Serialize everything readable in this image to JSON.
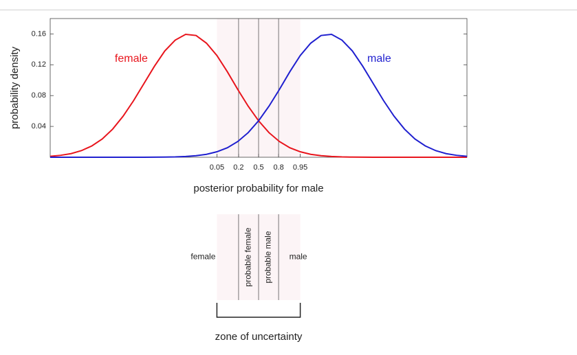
{
  "chart_data": {
    "type": "line",
    "xlabel": "posterior probability for male",
    "ylabel": "probability density",
    "x": [
      0,
      2.5,
      5,
      7.5,
      10,
      12.5,
      15,
      17.5,
      20,
      22.5,
      25,
      27.5,
      30,
      32.5,
      35,
      37.5,
      40,
      42.5,
      45,
      47.5,
      50,
      52.5,
      55,
      57.5,
      60,
      62.5,
      65,
      67.5,
      70,
      72.5,
      75,
      77.5,
      80,
      82.5,
      85,
      87.5,
      90,
      92.5,
      95,
      97.5,
      100
    ],
    "series": [
      {
        "name": "female",
        "color": "#e8141c",
        "values": [
          0.0012,
          0.0025,
          0.0047,
          0.0086,
          0.0147,
          0.0238,
          0.0366,
          0.0533,
          0.0734,
          0.0957,
          0.118,
          0.138,
          0.152,
          0.1595,
          0.158,
          0.148,
          0.132,
          0.111,
          0.088,
          0.0663,
          0.0473,
          0.0319,
          0.0204,
          0.0123,
          0.0071,
          0.0038,
          0.002,
          0.001,
          0.0004,
          0.0002,
          0.0001,
          0,
          0,
          0,
          0,
          0,
          0,
          0,
          0,
          0,
          0
        ]
      },
      {
        "name": "male",
        "color": "#1f1fcf",
        "values": [
          0,
          0,
          0,
          0,
          0,
          0,
          0,
          0,
          0,
          0,
          0.0001,
          0.0002,
          0.0004,
          0.001,
          0.002,
          0.0038,
          0.0071,
          0.0123,
          0.0204,
          0.0319,
          0.0473,
          0.0663,
          0.088,
          0.111,
          0.132,
          0.148,
          0.158,
          0.1595,
          0.152,
          0.138,
          0.118,
          0.0957,
          0.0734,
          0.0533,
          0.0366,
          0.0238,
          0.0147,
          0.0086,
          0.0047,
          0.0025,
          0.0012
        ]
      }
    ],
    "xlim": [
      0,
      100
    ],
    "ylim": [
      0,
      0.18
    ],
    "xticks": [
      {
        "value": 40,
        "label": "0.05"
      },
      {
        "value": 45.2,
        "label": "0.2"
      },
      {
        "value": 50,
        "label": "0.5"
      },
      {
        "value": 54.8,
        "label": "0.8"
      },
      {
        "value": 60,
        "label": "0.95"
      }
    ],
    "yticks": [
      0.04,
      0.08,
      0.12,
      0.16
    ],
    "zones": [
      "female",
      "probable female",
      "probable male",
      "male"
    ],
    "zone_caption": "zone of uncertainty"
  }
}
